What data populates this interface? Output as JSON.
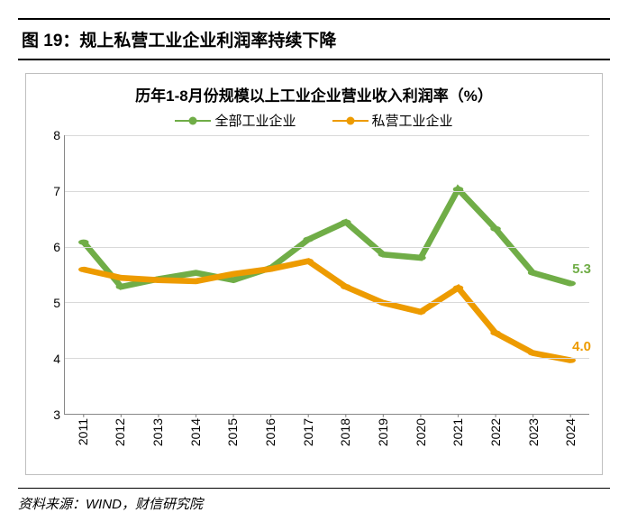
{
  "figure_label": "图 19：规上私营工业企业利润率持续下降",
  "chart": {
    "type": "line",
    "title": "历年1-8月份规模以上工业企业营业收入利润率（%）",
    "background_color": "#ffffff",
    "grid_color": "#d9d9d9",
    "axis_color": "#888888",
    "title_fontsize": 17,
    "label_fontsize": 14,
    "y": {
      "min": 3,
      "max": 8,
      "step": 1
    },
    "x_labels": [
      "2011",
      "2012",
      "2013",
      "2014",
      "2015",
      "2016",
      "2017",
      "2018",
      "2019",
      "2020",
      "2021",
      "2022",
      "2023",
      "2024"
    ],
    "series": [
      {
        "name": "全部工业企业",
        "color": "#70ad47",
        "line_width": 2.2,
        "marker_radius": 4.5,
        "values": [
          6.08,
          5.28,
          5.42,
          5.53,
          5.4,
          5.62,
          6.13,
          6.44,
          5.86,
          5.8,
          7.03,
          6.32,
          5.53,
          5.34
        ],
        "end_label": "5.3"
      },
      {
        "name": "私营工业企业",
        "color": "#ed9b00",
        "line_width": 2.2,
        "marker_radius": 4.5,
        "values": [
          5.59,
          5.44,
          5.4,
          5.38,
          5.51,
          5.6,
          5.74,
          5.28,
          4.99,
          4.83,
          5.26,
          4.45,
          4.09,
          3.96
        ],
        "end_label": "4.0"
      }
    ]
  },
  "source": "资料来源：WIND，财信研究院"
}
